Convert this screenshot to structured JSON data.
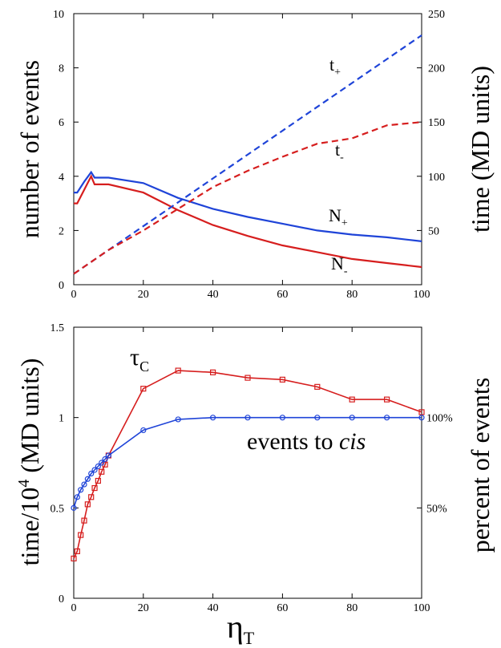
{
  "chart_data": [
    {
      "type": "line",
      "xlim": [
        0,
        100
      ],
      "ylim_left": [
        0,
        10
      ],
      "ylim_right": [
        0,
        250
      ],
      "xticks": [
        "0",
        "20",
        "40",
        "60",
        "80",
        "100"
      ],
      "yticks_left": [
        "0",
        "2",
        "4",
        "6",
        "8",
        "10"
      ],
      "yticks_right": [
        "50",
        "100",
        "150",
        "200",
        "250"
      ],
      "ylabel_left": "number of events",
      "ylabel_right": "time (MD units)",
      "colors": {
        "blue": "#1f44d8",
        "red": "#d61e1e"
      },
      "series": [
        {
          "name": "N+",
          "label_main": "N",
          "label_sub": "+",
          "axis": "left",
          "style": "solid",
          "color": "#1f44d8",
          "x": [
            0,
            1,
            3,
            5,
            6,
            10,
            20,
            30,
            40,
            50,
            60,
            70,
            80,
            90,
            100
          ],
          "y": [
            3.4,
            3.4,
            3.8,
            4.15,
            3.95,
            3.95,
            3.75,
            3.2,
            2.8,
            2.5,
            2.25,
            2.0,
            1.85,
            1.75,
            1.6
          ]
        },
        {
          "name": "N-",
          "label_main": "N",
          "label_sub": "-",
          "axis": "left",
          "style": "solid",
          "color": "#d61e1e",
          "x": [
            0,
            1,
            3,
            5,
            6,
            10,
            20,
            30,
            40,
            50,
            60,
            70,
            80,
            90,
            100
          ],
          "y": [
            3.0,
            3.0,
            3.5,
            4.0,
            3.7,
            3.7,
            3.4,
            2.75,
            2.2,
            1.8,
            1.45,
            1.2,
            0.95,
            0.8,
            0.65
          ]
        },
        {
          "name": "t+",
          "label_main": "t",
          "label_sub": "+",
          "axis": "right",
          "style": "dashed",
          "color": "#1f44d8",
          "x": [
            0,
            100
          ],
          "y": [
            10,
            230
          ]
        },
        {
          "name": "t-",
          "label_main": "t",
          "label_sub": "-",
          "axis": "right",
          "style": "dashed",
          "color": "#d61e1e",
          "x": [
            0,
            10,
            20,
            30,
            40,
            50,
            60,
            70,
            80,
            90,
            100
          ],
          "y": [
            10,
            32,
            50,
            70,
            90,
            105,
            118,
            130,
            135,
            147,
            150
          ]
        }
      ]
    },
    {
      "type": "line",
      "xlim": [
        0,
        100
      ],
      "ylim_left": [
        0,
        1.5
      ],
      "xticks": [
        "0",
        "20",
        "40",
        "60",
        "80",
        "100"
      ],
      "yticks_left": [
        "0",
        "0.5",
        "1",
        "1.5"
      ],
      "yticks_right": [
        "50%",
        "100%"
      ],
      "ylabel_left_main": "time/10",
      "ylabel_left_sup": "4",
      "ylabel_left_rest": " (MD units)",
      "ylabel_right": "percent of events",
      "xlabel_main": "η",
      "xlabel_sub": "T",
      "series": [
        {
          "name": "τC",
          "label_main": "τ",
          "label_sub": "C",
          "marker": "square",
          "color": "#d61e1e",
          "x": [
            0,
            1,
            2,
            3,
            4,
            5,
            6,
            7,
            8,
            9,
            10,
            20,
            30,
            40,
            50,
            60,
            70,
            80,
            90,
            100
          ],
          "y": [
            0.22,
            0.26,
            0.35,
            0.43,
            0.52,
            0.56,
            0.61,
            0.65,
            0.7,
            0.74,
            0.79,
            1.16,
            1.26,
            1.25,
            1.22,
            1.21,
            1.17,
            1.1,
            1.1,
            1.03
          ]
        },
        {
          "name": "events to cis",
          "label_plain": "events to ",
          "label_italic": "cis",
          "marker": "circle",
          "color": "#1f44d8",
          "x": [
            0,
            1,
            2,
            3,
            4,
            5,
            6,
            7,
            8,
            9,
            10,
            20,
            30,
            40,
            50,
            60,
            70,
            80,
            90,
            100
          ],
          "y": [
            0.5,
            0.56,
            0.6,
            0.63,
            0.66,
            0.69,
            0.71,
            0.73,
            0.75,
            0.77,
            0.79,
            0.93,
            0.99,
            1.0,
            1.0,
            1.0,
            1.0,
            1.0,
            1.0,
            1.0
          ]
        }
      ]
    }
  ]
}
